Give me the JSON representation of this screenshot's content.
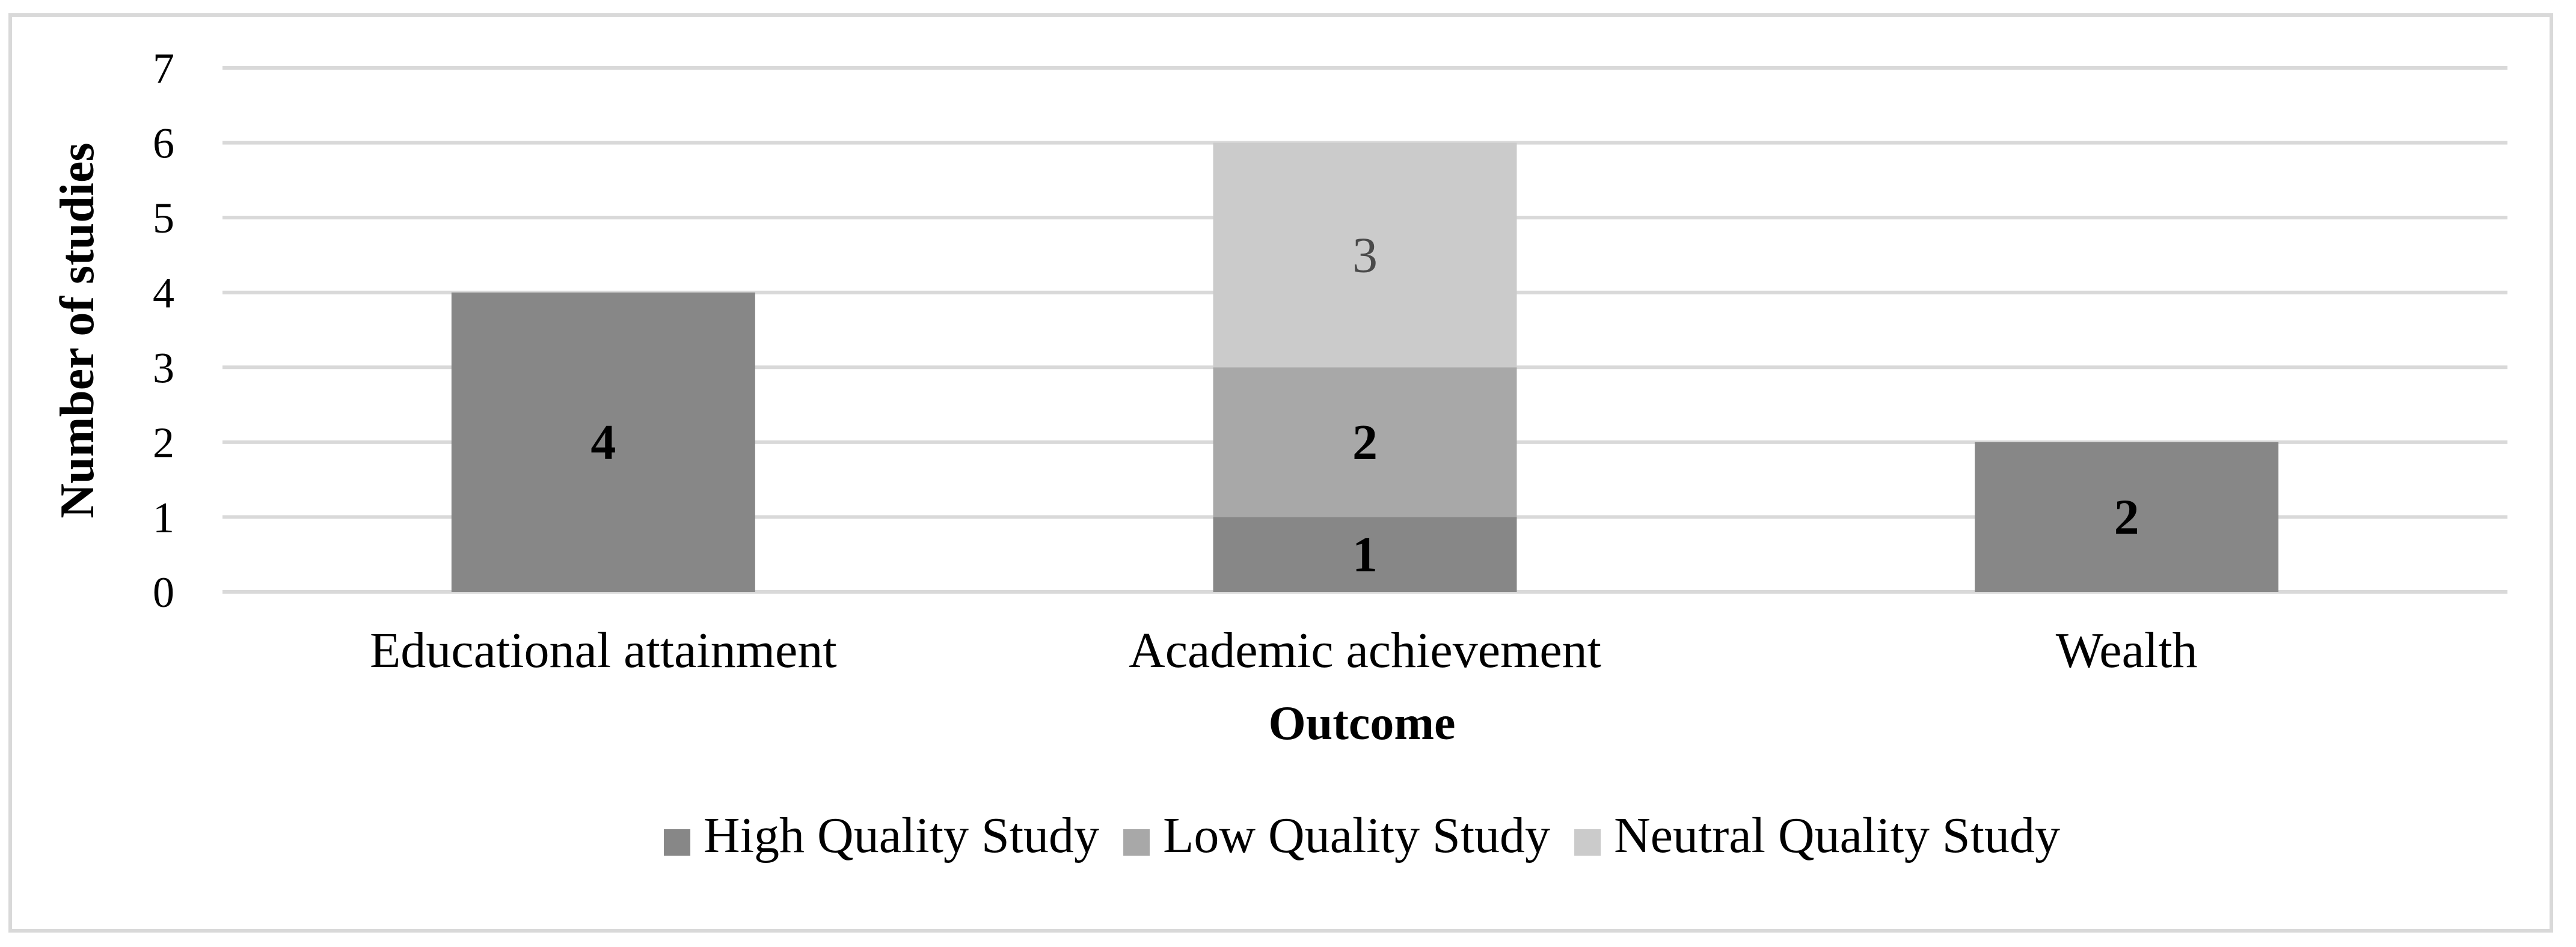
{
  "chart_data": {
    "type": "bar",
    "stacked": true,
    "categories": [
      "Educational attainment",
      "Academic achievement",
      "Wealth"
    ],
    "series": [
      {
        "name": "High Quality Study",
        "values": [
          4,
          1,
          2
        ],
        "color": "#878787",
        "label_color": "#000000",
        "label_bold": true
      },
      {
        "name": "Low Quality Study",
        "values": [
          0,
          2,
          0
        ],
        "color": "#a8a8a8",
        "label_color": "#000000",
        "label_bold": true
      },
      {
        "name": "Neutral Quality Study",
        "values": [
          0,
          3,
          0
        ],
        "color": "#cbcbcb",
        "label_color": "#4a4a4a",
        "label_bold": false
      }
    ],
    "xlabel": "Outcome",
    "ylabel": "Number of studies",
    "ylim": [
      0,
      7
    ],
    "yticks": [
      0,
      1,
      2,
      3,
      4,
      5,
      6,
      7
    ],
    "grid": true,
    "legend_position": "bottom"
  }
}
